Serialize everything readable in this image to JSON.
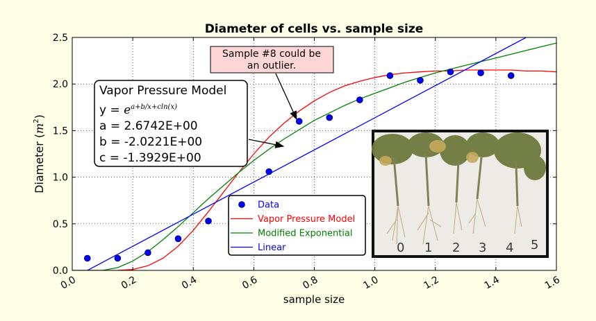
{
  "chart_data": {
    "type": "scatter",
    "title": "Diameter of cells vs. sample size",
    "xlabel": "sample size",
    "ylabel": "Diameter (m²)",
    "xlim": [
      0.0,
      1.6
    ],
    "ylim": [
      0.0,
      2.5
    ],
    "xticks": [
      "0.0",
      "0.2",
      "0.4",
      "0.6",
      "0.8",
      "1.0",
      "1.2",
      "1.4",
      "1.6"
    ],
    "yticks": [
      "0.0",
      "0.5",
      "1.0",
      "1.5",
      "2.0",
      "2.5"
    ],
    "grid": true,
    "legend_position": "lower center",
    "series": [
      {
        "name": "Data",
        "kind": "scatter",
        "color": "#0000ff",
        "x": [
          0.05,
          0.15,
          0.25,
          0.35,
          0.45,
          0.65,
          0.75,
          0.85,
          0.95,
          1.05,
          1.15,
          1.25,
          1.35,
          1.45
        ],
        "y": [
          0.13,
          0.13,
          0.19,
          0.34,
          0.53,
          1.06,
          1.6,
          1.64,
          1.83,
          2.09,
          2.04,
          2.13,
          2.12,
          2.09
        ]
      },
      {
        "name": "Vapor Pressure Model",
        "kind": "line",
        "color": "#ff0000",
        "x": [
          0.0,
          0.1,
          0.15,
          0.2,
          0.25,
          0.3,
          0.35,
          0.4,
          0.45,
          0.5,
          0.55,
          0.6,
          0.65,
          0.7,
          0.75,
          0.8,
          0.85,
          0.9,
          0.95,
          1.0,
          1.05,
          1.1,
          1.15,
          1.2,
          1.25,
          1.3,
          1.35,
          1.4,
          1.45,
          1.5,
          1.55,
          1.6
        ],
        "y": [
          0.0,
          0.0,
          0.0,
          0.01,
          0.05,
          0.13,
          0.26,
          0.43,
          0.63,
          0.84,
          1.05,
          1.25,
          1.43,
          1.58,
          1.71,
          1.82,
          1.91,
          1.98,
          2.03,
          2.07,
          2.1,
          2.12,
          2.13,
          2.14,
          2.14,
          2.15,
          2.15,
          2.15,
          2.15,
          2.14,
          2.14,
          2.13
        ]
      },
      {
        "name": "Modified Exponential",
        "kind": "line",
        "color": "#008000",
        "x": [
          0.0,
          0.1,
          0.15,
          0.2,
          0.25,
          0.3,
          0.35,
          0.4,
          0.45,
          0.5,
          0.55,
          0.6,
          0.65,
          0.7,
          0.75,
          0.8,
          0.85,
          0.9,
          0.95,
          1.0,
          1.05,
          1.1,
          1.15,
          1.2,
          1.25,
          1.3,
          1.35,
          1.4,
          1.45,
          1.5,
          1.55,
          1.6
        ],
        "y": [
          0.0,
          0.0,
          0.03,
          0.1,
          0.2,
          0.33,
          0.47,
          0.62,
          0.77,
          0.91,
          1.05,
          1.18,
          1.3,
          1.41,
          1.51,
          1.61,
          1.69,
          1.77,
          1.84,
          1.9,
          1.96,
          2.02,
          2.07,
          2.12,
          2.16,
          2.2,
          2.24,
          2.28,
          2.32,
          2.36,
          2.4,
          2.44
        ]
      },
      {
        "name": "Linear",
        "kind": "line",
        "color": "#0000ff",
        "x": [
          0.05,
          1.5
        ],
        "y": [
          0.0,
          2.5
        ]
      }
    ],
    "annotations": [
      {
        "text": "Sample #8 could be an outlier.",
        "lines": [
          "Sample #8 could be",
          "an outlier."
        ],
        "points_to": [
          0.75,
          1.6
        ],
        "face": "#ffd6d6"
      },
      {
        "text_lines": [
          "Vapor Pressure Model",
          "y = e^(a+b/x+cln(x))",
          "a = 2.6742E+00",
          "b = -2.0221E+00",
          "c = -1.3929E+00"
        ],
        "points_to": [
          0.7,
          1.35
        ],
        "face": "#ffffff"
      }
    ]
  },
  "model_box": {
    "title": "Vapor Pressure Model",
    "eq_prefix": "y = ",
    "eq_base": "e",
    "eq_exp": "a+b/x+cln(x)",
    "a": "a = 2.6742E+00",
    "b": "b = -2.0221E+00",
    "c": "c = -1.3929E+00"
  },
  "outlier_note": {
    "line1": "Sample #8 could be",
    "line2": "an outlier."
  },
  "ylabel_text": {
    "main": "Diameter (",
    "m": "m",
    "sup": "2",
    "close": ")"
  }
}
